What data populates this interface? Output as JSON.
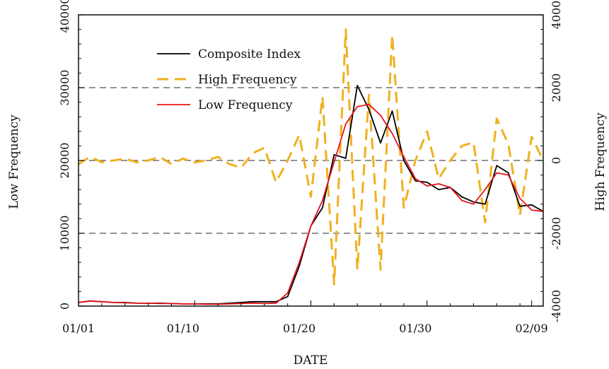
{
  "chart_data": {
    "type": "line",
    "xlabel": "DATE",
    "ylabel_left": "Low Frequency",
    "ylabel_right": "High Frequency",
    "x_tick_labels": [
      {
        "day": 1,
        "label": "01/01"
      },
      {
        "day": 10,
        "label": "01/10"
      },
      {
        "day": 20,
        "label": "01/20"
      },
      {
        "day": 30,
        "label": "01/30"
      },
      {
        "day": 40,
        "label": "02/09"
      }
    ],
    "xlim": [
      1,
      41
    ],
    "ylim_left": [
      0,
      40000
    ],
    "ylim_right": [
      -4000,
      4000
    ],
    "y_left_ticks": [
      "0",
      "10000",
      "20000",
      "30000",
      "40000"
    ],
    "y_right_ticks": [
      "-4000",
      "-2000",
      "0",
      "2000",
      "4000"
    ],
    "reference_lines_left": [
      10000,
      20000,
      30000
    ],
    "legend_position": "top-left",
    "series": [
      {
        "name": "Composite Index",
        "axis": "left",
        "color": "#000000",
        "style": "solid",
        "x": [
          1,
          2,
          3,
          4,
          5,
          6,
          7,
          8,
          9,
          10,
          11,
          12,
          13,
          14,
          15,
          16,
          17,
          18,
          19,
          20,
          21,
          22,
          23,
          24,
          25,
          26,
          27,
          28,
          29,
          30,
          31,
          32,
          33,
          34,
          35,
          36,
          37,
          38,
          39,
          40,
          41
        ],
        "values": [
          500,
          700,
          600,
          500,
          500,
          400,
          400,
          400,
          350,
          300,
          300,
          300,
          300,
          400,
          500,
          600,
          600,
          600,
          1300,
          5500,
          11000,
          13500,
          20800,
          20300,
          30300,
          27000,
          22400,
          26800,
          20000,
          17200,
          17000,
          16000,
          16300,
          15000,
          14300,
          14000,
          19300,
          18300,
          13700,
          13900,
          13000
        ]
      },
      {
        "name": "High Frequency",
        "axis": "right",
        "color": "#f0b020",
        "style": "dashed",
        "x": [
          1,
          2,
          3,
          4,
          5,
          6,
          7,
          8,
          9,
          10,
          11,
          12,
          13,
          14,
          15,
          16,
          17,
          18,
          19,
          20,
          21,
          22,
          23,
          24,
          25,
          26,
          27,
          28,
          29,
          30,
          31,
          32,
          33,
          34,
          35,
          36,
          37,
          38,
          39,
          40,
          41
        ],
        "values": [
          -100,
          100,
          -50,
          0,
          50,
          -50,
          0,
          100,
          -100,
          50,
          -50,
          0,
          100,
          -100,
          -200,
          200,
          350,
          -600,
          0,
          700,
          -1000,
          1750,
          -3400,
          3600,
          -3000,
          1800,
          -3000,
          3450,
          -1300,
          0,
          800,
          -500,
          0,
          400,
          500,
          -1700,
          1150,
          450,
          -1500,
          650,
          0
        ]
      },
      {
        "name": "Low Frequency",
        "axis": "left",
        "color": "#e8141c",
        "style": "solid",
        "x": [
          1,
          2,
          3,
          4,
          5,
          6,
          7,
          8,
          9,
          10,
          11,
          12,
          13,
          14,
          15,
          16,
          17,
          18,
          19,
          20,
          21,
          22,
          23,
          24,
          25,
          26,
          27,
          28,
          29,
          30,
          31,
          32,
          33,
          34,
          35,
          36,
          37,
          38,
          39,
          40,
          41
        ],
        "values": [
          500,
          700,
          600,
          500,
          450,
          400,
          400,
          350,
          350,
          300,
          300,
          250,
          250,
          300,
          350,
          400,
          350,
          400,
          1800,
          6000,
          11000,
          14500,
          19800,
          25000,
          27400,
          27700,
          26200,
          23700,
          20500,
          17500,
          16500,
          16800,
          16300,
          14500,
          14000,
          16000,
          18300,
          18000,
          14800,
          13200,
          13000
        ]
      }
    ]
  }
}
